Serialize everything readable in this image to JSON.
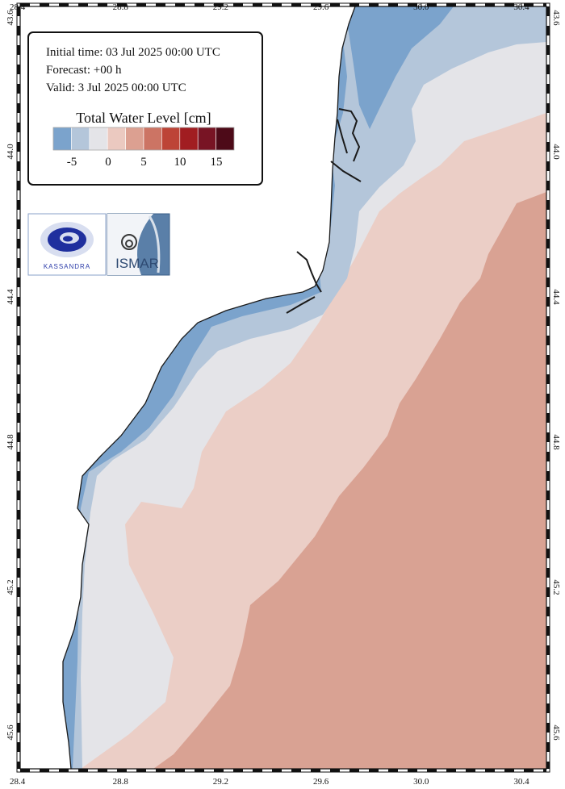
{
  "info": {
    "initial_time": "Initial time: 03 Jul 2025 00:00 UTC",
    "forecast": "Forecast: +00 h",
    "valid": "Valid:  3 Jul 2025 00:00 UTC"
  },
  "legend": {
    "title": "Total Water Level [cm]",
    "colors": [
      "#7ba3cc",
      "#b4c6da",
      "#e4e4e8",
      "#ebc9c0",
      "#dca091",
      "#cc7464",
      "#bd4437",
      "#a11d21",
      "#781424",
      "#4d0a18"
    ],
    "tick_labels": [
      "-5",
      "0",
      "5",
      "10",
      "15"
    ]
  },
  "logos": {
    "kassandra": "KASSANDRA",
    "ismar": "ISMAR"
  },
  "axes": {
    "lon_labels": [
      "28.4",
      "28.8",
      "29.2",
      "29.6",
      "30.0",
      "30.4"
    ],
    "lat_labels": [
      "45.6",
      "45.2",
      "44.8",
      "44.4",
      "44.0",
      "43.6"
    ]
  },
  "chart_data": {
    "type": "heatmap",
    "title": "Total Water Level [cm]",
    "xlabel": "",
    "ylabel": "",
    "xlim": [
      28.4,
      30.5
    ],
    "ylim": [
      43.5,
      45.6
    ],
    "x_ticks": [
      28.4,
      28.8,
      29.2,
      29.6,
      30.0,
      30.4
    ],
    "y_ticks": [
      43.6,
      44.0,
      44.4,
      44.8,
      45.2,
      45.6
    ],
    "colorbar_ticks": [
      -5,
      0,
      5,
      10,
      15
    ],
    "bands_west_to_east_cm": [
      -7.5,
      -5,
      0,
      2.5,
      5
    ],
    "colors": {
      "land": "#ffffff",
      "band_minus7": "#7ba3cc",
      "band_minus5": "#b4c6da",
      "band_0": "#e4e4e8",
      "band_plus2": "#ebcec6",
      "band_plus5": "#d9a293"
    }
  }
}
